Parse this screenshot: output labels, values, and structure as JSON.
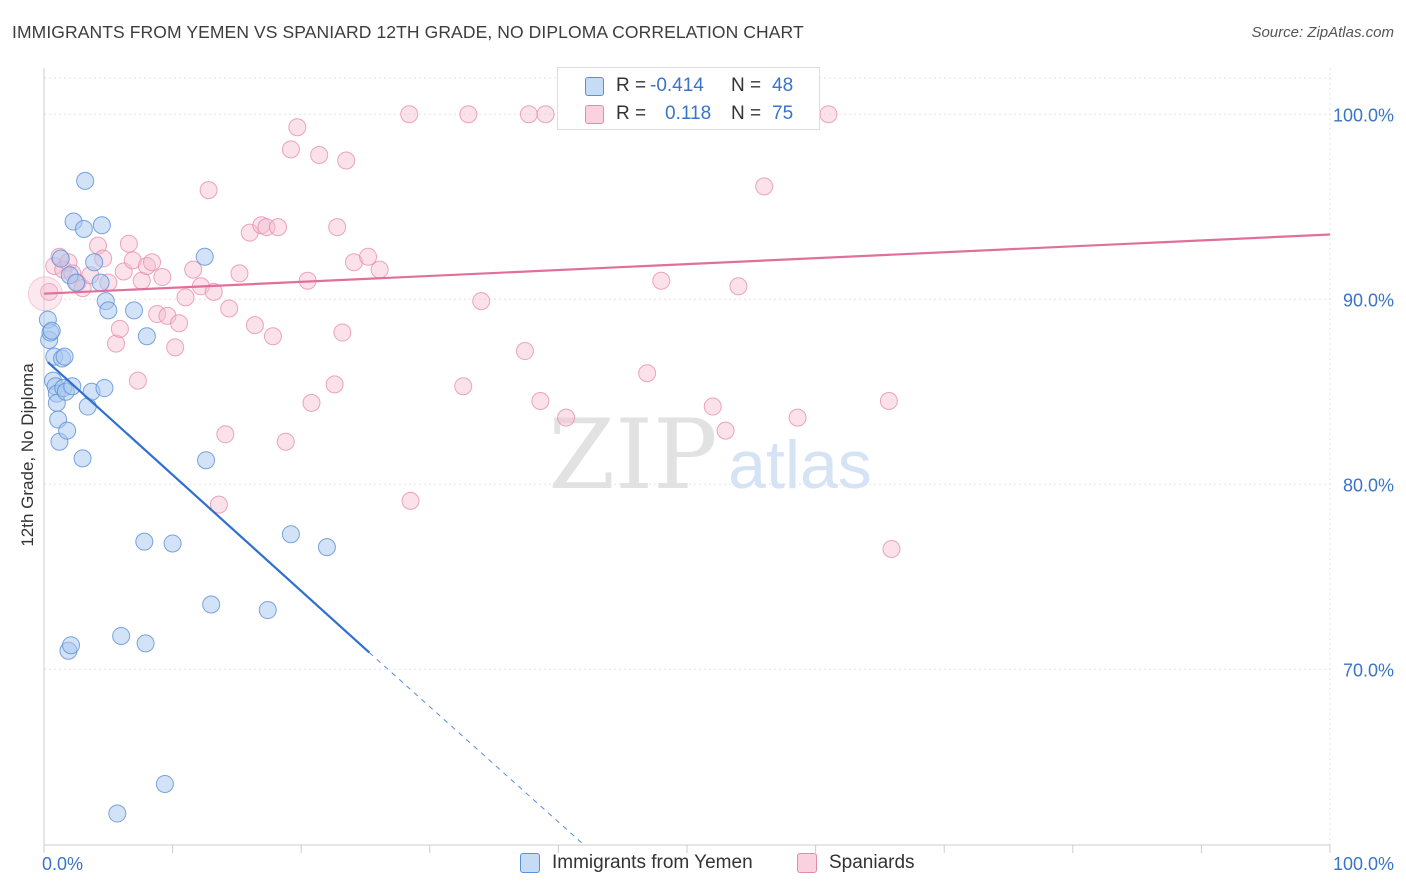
{
  "title": "IMMIGRANTS FROM YEMEN VS SPANIARD 12TH GRADE, NO DIPLOMA CORRELATION CHART",
  "source": "Source: ZipAtlas.com",
  "watermark": {
    "zip": "ZIP",
    "atlas": "atlas"
  },
  "colors": {
    "blue_fill": "#a8c8f0",
    "blue_stroke": "#5b8fd8",
    "blue_line": "#2f6fd0",
    "pink_fill": "#f6bcd0",
    "pink_stroke": "#e58aab",
    "pink_line": "#e0709a",
    "axis_label": "#3a74c8",
    "grid": "#e3e3e3"
  },
  "stats_legend": {
    "rows": [
      {
        "r_label": "R =",
        "r_value": "-0.414",
        "n_label": "N =",
        "n_value": "48"
      },
      {
        "r_label": "R =",
        "r_value": "0.118",
        "n_label": "N =",
        "n_value": "75"
      }
    ]
  },
  "legend": [
    {
      "label": "Immigrants from Yemen"
    },
    {
      "label": "Spaniards"
    }
  ],
  "chart_data": {
    "type": "scatter",
    "xlabel": "",
    "ylabel": "12th Grade, No Diploma",
    "xlim": [
      0,
      100
    ],
    "ylim": [
      60.5,
      102.5
    ],
    "x_tick_labels": [
      "0.0%",
      "100.0%"
    ],
    "y_tick_labels": [
      {
        "value": 100,
        "label": "100.0%"
      },
      {
        "value": 90,
        "label": "90.0%"
      },
      {
        "value": 80,
        "label": "80.0%"
      },
      {
        "value": 70,
        "label": "70.0%"
      }
    ],
    "grid": true,
    "series": [
      {
        "name": "Immigrants from Yemen",
        "r": -0.414,
        "n": 48,
        "trend": {
          "x1": 0.3,
          "y1": 86.6,
          "x2": 25.3,
          "y2": 70.9,
          "dash_to_x": 42.0,
          "dash_to_y": 60.5
        },
        "points": [
          [
            0.3,
            88.9
          ],
          [
            0.4,
            87.8
          ],
          [
            0.5,
            88.2
          ],
          [
            0.6,
            88.3
          ],
          [
            0.7,
            85.6
          ],
          [
            0.8,
            86.9
          ],
          [
            0.9,
            85.3
          ],
          [
            1.0,
            84.9
          ],
          [
            1.0,
            84.4
          ],
          [
            1.1,
            83.5
          ],
          [
            1.2,
            82.3
          ],
          [
            1.3,
            92.2
          ],
          [
            1.4,
            86.8
          ],
          [
            1.5,
            85.2
          ],
          [
            1.6,
            86.9
          ],
          [
            1.7,
            85.0
          ],
          [
            1.8,
            82.9
          ],
          [
            1.9,
            71.0
          ],
          [
            2.0,
            91.3
          ],
          [
            2.1,
            71.3
          ],
          [
            2.2,
            85.3
          ],
          [
            2.3,
            94.2
          ],
          [
            2.5,
            90.9
          ],
          [
            3.0,
            81.4
          ],
          [
            3.1,
            93.8
          ],
          [
            3.2,
            96.4
          ],
          [
            3.4,
            84.2
          ],
          [
            3.7,
            85.0
          ],
          [
            3.9,
            92.0
          ],
          [
            4.4,
            90.9
          ],
          [
            4.5,
            94.0
          ],
          [
            4.7,
            85.2
          ],
          [
            4.8,
            89.9
          ],
          [
            5.0,
            89.4
          ],
          [
            5.7,
            62.2
          ],
          [
            6.0,
            71.8
          ],
          [
            7.0,
            89.4
          ],
          [
            7.8,
            76.9
          ],
          [
            7.9,
            71.4
          ],
          [
            8.0,
            88.0
          ],
          [
            9.4,
            63.8
          ],
          [
            10.0,
            76.8
          ],
          [
            12.5,
            92.3
          ],
          [
            12.6,
            81.3
          ],
          [
            13.0,
            73.5
          ],
          [
            17.4,
            73.2
          ],
          [
            19.2,
            77.3
          ],
          [
            22.0,
            76.6
          ]
        ]
      },
      {
        "name": "Spaniards",
        "r": 0.118,
        "n": 75,
        "trend": {
          "x1": 0,
          "y1": 90.3,
          "x2": 100,
          "y2": 93.5
        },
        "points": [
          [
            0.4,
            90.4
          ],
          [
            0.8,
            91.8
          ],
          [
            1.2,
            92.3
          ],
          [
            1.5,
            91.6
          ],
          [
            1.9,
            92.0
          ],
          [
            2.2,
            91.4
          ],
          [
            2.6,
            90.9
          ],
          [
            3.0,
            90.6
          ],
          [
            3.6,
            91.3
          ],
          [
            4.2,
            92.9
          ],
          [
            4.6,
            92.2
          ],
          [
            5.0,
            90.9
          ],
          [
            5.6,
            87.6
          ],
          [
            5.9,
            88.4
          ],
          [
            6.2,
            91.5
          ],
          [
            6.6,
            93.0
          ],
          [
            6.9,
            92.1
          ],
          [
            7.3,
            85.6
          ],
          [
            7.6,
            91.0
          ],
          [
            8.0,
            91.8
          ],
          [
            8.4,
            92.0
          ],
          [
            8.8,
            89.2
          ],
          [
            9.2,
            91.2
          ],
          [
            9.6,
            89.1
          ],
          [
            10.2,
            87.4
          ],
          [
            10.5,
            88.7
          ],
          [
            11.0,
            90.1
          ],
          [
            11.6,
            91.6
          ],
          [
            12.2,
            90.7
          ],
          [
            12.8,
            95.9
          ],
          [
            13.2,
            90.4
          ],
          [
            13.6,
            78.9
          ],
          [
            14.1,
            82.7
          ],
          [
            14.4,
            89.5
          ],
          [
            15.2,
            91.4
          ],
          [
            16.0,
            93.6
          ],
          [
            16.4,
            88.6
          ],
          [
            16.9,
            94.0
          ],
          [
            17.3,
            93.9
          ],
          [
            17.8,
            88.0
          ],
          [
            18.2,
            93.9
          ],
          [
            18.8,
            82.3
          ],
          [
            19.2,
            98.1
          ],
          [
            19.7,
            99.3
          ],
          [
            20.5,
            91.0
          ],
          [
            20.8,
            84.4
          ],
          [
            21.4,
            97.8
          ],
          [
            22.6,
            85.4
          ],
          [
            22.8,
            93.9
          ],
          [
            23.2,
            88.2
          ],
          [
            23.5,
            97.5
          ],
          [
            24.1,
            92.0
          ],
          [
            25.2,
            92.3
          ],
          [
            26.1,
            91.6
          ],
          [
            28.4,
            100.0
          ],
          [
            28.5,
            79.1
          ],
          [
            32.6,
            85.3
          ],
          [
            33.0,
            100.0
          ],
          [
            34.0,
            89.9
          ],
          [
            37.4,
            87.2
          ],
          [
            37.7,
            100.0
          ],
          [
            38.6,
            84.5
          ],
          [
            39.0,
            100.0
          ],
          [
            40.6,
            83.6
          ],
          [
            45.0,
            100.0
          ],
          [
            46.9,
            86.0
          ],
          [
            48.0,
            91.0
          ],
          [
            52.0,
            84.2
          ],
          [
            53.0,
            82.9
          ],
          [
            54.0,
            90.7
          ],
          [
            56.0,
            96.1
          ],
          [
            58.6,
            83.6
          ],
          [
            61.0,
            100.0
          ],
          [
            65.7,
            84.5
          ],
          [
            65.9,
            76.5
          ]
        ]
      }
    ]
  }
}
